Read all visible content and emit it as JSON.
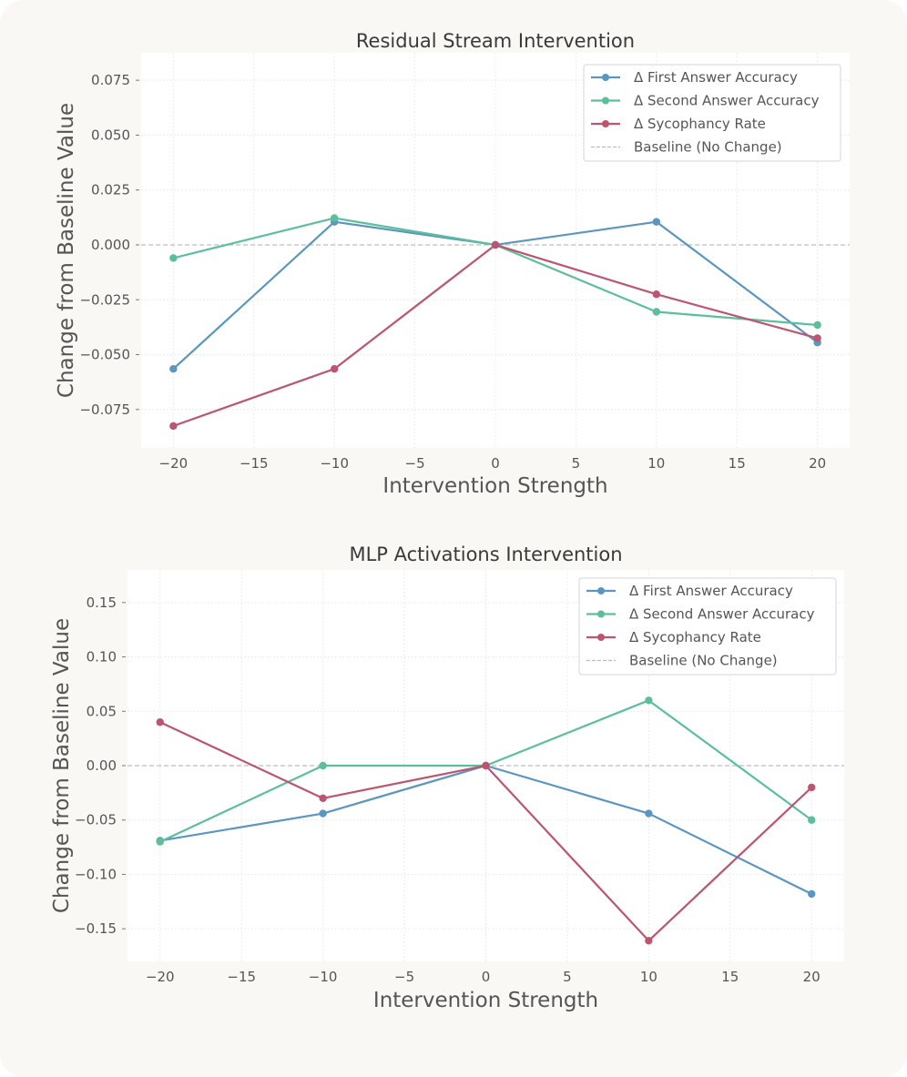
{
  "chart_data": [
    {
      "type": "line",
      "title": "Residual Stream Intervention",
      "xlabel": "Intervention Strength",
      "ylabel": "Change from Baseline Value",
      "xlim": [
        -22,
        22
      ],
      "ylim": [
        -0.0925,
        0.0875
      ],
      "xticks": [
        -20,
        -15,
        -10,
        -5,
        0,
        5,
        10,
        15,
        20
      ],
      "yticks": [
        -0.075,
        -0.05,
        -0.025,
        0.0,
        0.025,
        0.05,
        0.075
      ],
      "ytick_labels": [
        "−0.075",
        "−0.050",
        "−0.025",
        "0.000",
        "0.025",
        "0.050",
        "0.075"
      ],
      "xtick_labels": [
        "−20",
        "−15",
        "−10",
        "−5",
        "0",
        "5",
        "10",
        "15",
        "20"
      ],
      "grid": true,
      "legend_position": "top-right",
      "baseline_label": "Baseline (No Change)",
      "x": [
        -20,
        -10,
        0,
        10,
        20
      ],
      "series": [
        {
          "name": "Δ First Answer Accuracy",
          "color": "#5a96bf",
          "values": [
            -0.0565,
            0.0105,
            0.0,
            0.0105,
            -0.0445
          ]
        },
        {
          "name": "Δ Second Answer Accuracy",
          "color": "#5cbf9b",
          "values": [
            -0.006,
            0.0122,
            0.0,
            -0.0305,
            -0.0365
          ]
        },
        {
          "name": "Δ Sycophancy Rate",
          "color": "#bd5570",
          "values": [
            -0.0825,
            -0.0565,
            0.0,
            -0.0225,
            -0.0425
          ]
        }
      ]
    },
    {
      "type": "line",
      "title": "MLP Activations Intervention",
      "xlabel": "Intervention Strength",
      "ylabel": "Change from Baseline Value",
      "xlim": [
        -22,
        22
      ],
      "ylim": [
        -0.18,
        0.18
      ],
      "xticks": [
        -20,
        -15,
        -10,
        -5,
        0,
        5,
        10,
        15,
        20
      ],
      "yticks": [
        -0.15,
        -0.1,
        -0.05,
        0.0,
        0.05,
        0.1,
        0.15
      ],
      "ytick_labels": [
        "−0.15",
        "−0.10",
        "−0.05",
        "0.00",
        "0.05",
        "0.10",
        "0.15"
      ],
      "xtick_labels": [
        "−20",
        "−15",
        "−10",
        "−5",
        "0",
        "5",
        "10",
        "15",
        "20"
      ],
      "grid": true,
      "legend_position": "top-right",
      "baseline_label": "Baseline (No Change)",
      "x": [
        -20,
        -10,
        0,
        10,
        20
      ],
      "series": [
        {
          "name": "Δ First Answer Accuracy",
          "color": "#5a96bf",
          "values": [
            -0.069,
            -0.044,
            0.0,
            -0.044,
            -0.118
          ]
        },
        {
          "name": "Δ Second Answer Accuracy",
          "color": "#5cbf9b",
          "values": [
            -0.07,
            0.0,
            0.0,
            0.06,
            -0.05
          ]
        },
        {
          "name": "Δ Sycophancy Rate",
          "color": "#bd5570",
          "values": [
            0.04,
            -0.03,
            0.0,
            -0.161,
            -0.02
          ]
        }
      ]
    }
  ]
}
